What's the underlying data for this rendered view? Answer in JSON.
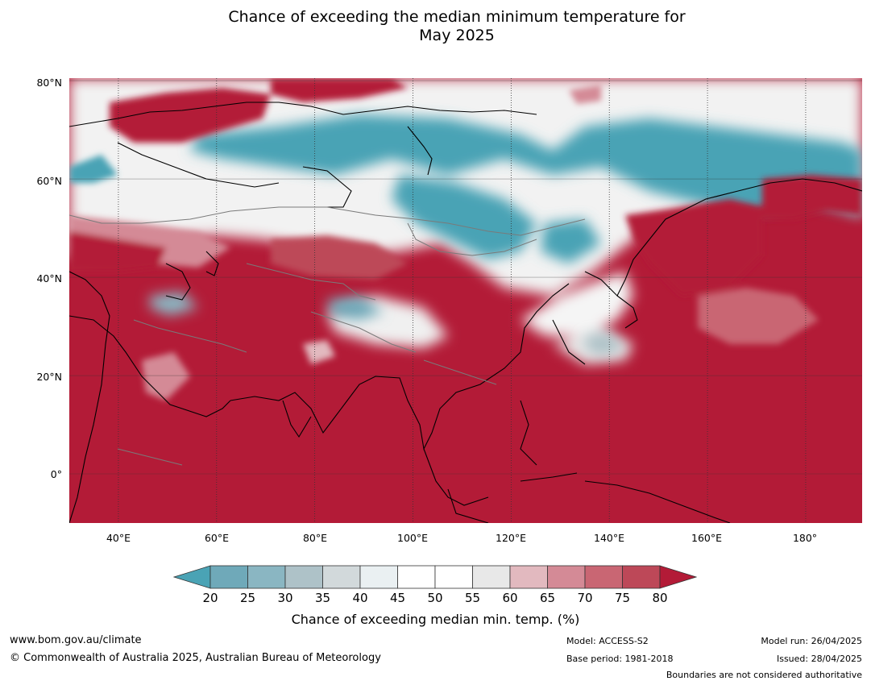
{
  "title": {
    "line1": "Chance of exceeding the median minimum temperature for",
    "line2": "May 2025"
  },
  "map": {
    "latitude_labels": [
      "80°N",
      "60°N",
      "40°N",
      "20°N",
      "0°"
    ],
    "longitude_labels": [
      "40°E",
      "60°E",
      "80°E",
      "100°E",
      "120°E",
      "140°E",
      "160°E",
      "180°"
    ],
    "latitude_values": [
      80,
      60,
      40,
      20,
      0
    ],
    "longitude_values": [
      40,
      60,
      80,
      100,
      120,
      140,
      160,
      180
    ],
    "extent": {
      "lon_min": 30,
      "lon_max": 191.5,
      "lat_min": -10,
      "lat_max": 80.5
    },
    "land_outline_color": "#000000",
    "country_border_color": "#7a7a7a",
    "gridline_color": "#333333"
  },
  "colorbar": {
    "ticks": [
      "20",
      "25",
      "30",
      "35",
      "40",
      "45",
      "50",
      "55",
      "60",
      "65",
      "70",
      "75",
      "80"
    ],
    "colors": [
      "#4aa3b5",
      "#6fa9b9",
      "#8ab6c2",
      "#aec2c8",
      "#d2d9db",
      "#eaf0f2",
      "#ffffff",
      "#ffffff",
      "#e8e8e8",
      "#e2b9bf",
      "#d48a96",
      "#c96673",
      "#bd4858",
      "#b31b37"
    ],
    "label": "Chance of exceeding median min. temp. (%)"
  },
  "footer": {
    "url": "www.bom.gov.au/climate",
    "copyright": "© Commonwealth of Australia 2025, Australian Bureau of Meteorology",
    "model": "Model: ACCESS-S2",
    "base_period": "Base period: 1981-2018",
    "model_run": "Model run: 26/04/2025",
    "issued": "Issued: 28/04/2025",
    "boundaries": "Boundaries are not considered authoritative"
  }
}
